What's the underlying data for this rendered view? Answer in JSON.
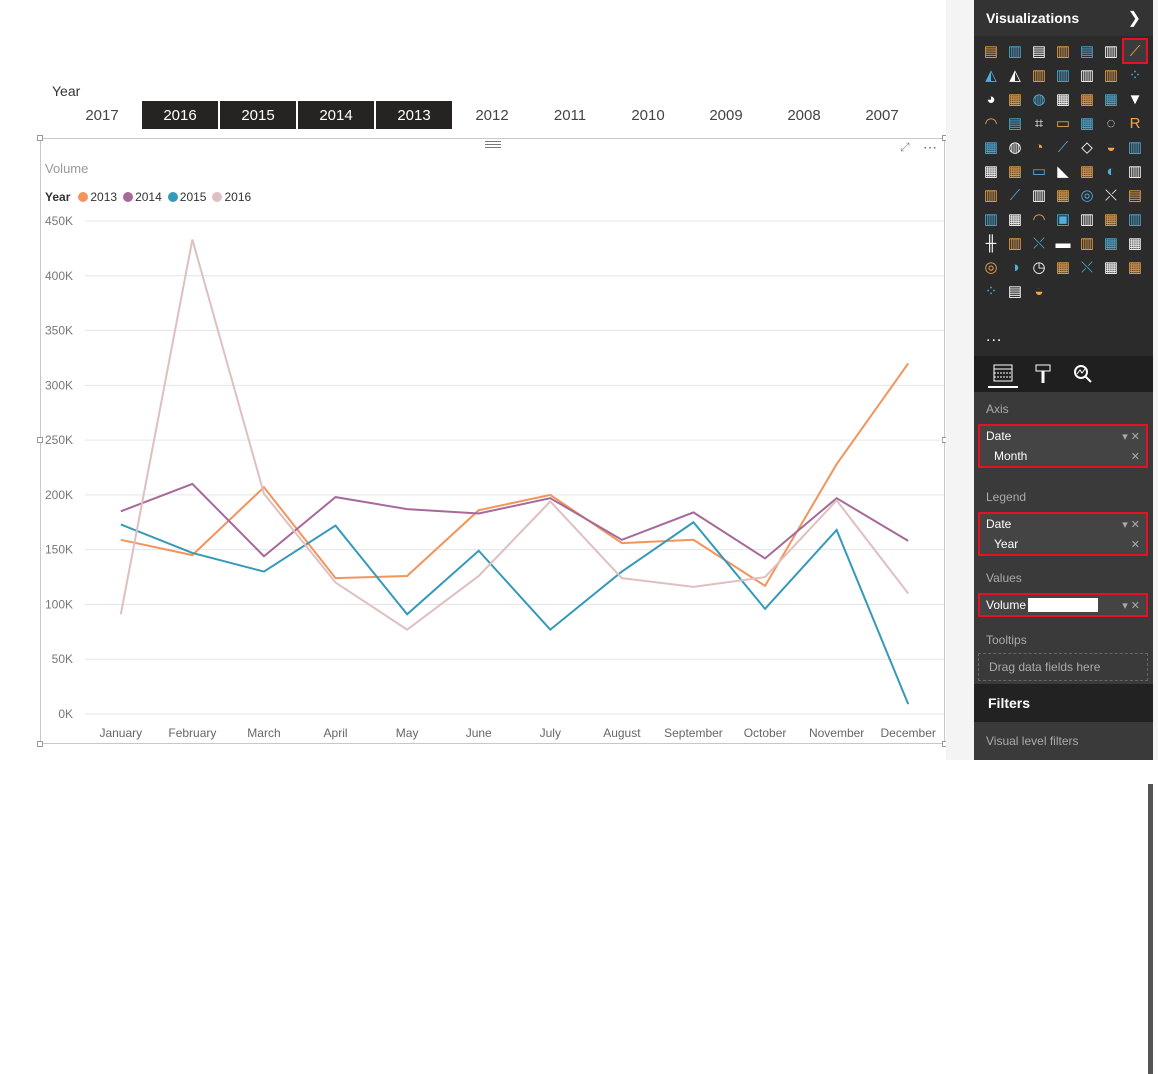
{
  "slicer": {
    "title": "Year",
    "tiles": [
      {
        "label": "2017",
        "selected": false
      },
      {
        "label": "2016",
        "selected": true
      },
      {
        "label": "2015",
        "selected": true
      },
      {
        "label": "2014",
        "selected": true
      },
      {
        "label": "2013",
        "selected": true
      },
      {
        "label": "2012",
        "selected": false
      },
      {
        "label": "2011",
        "selected": false
      },
      {
        "label": "2010",
        "selected": false
      },
      {
        "label": "2009",
        "selected": false
      },
      {
        "label": "2008",
        "selected": false
      },
      {
        "label": "2007",
        "selected": false
      }
    ]
  },
  "visual": {
    "title": "Volume",
    "legend_title": "Year"
  },
  "chart_data": {
    "type": "line",
    "categories": [
      "January",
      "February",
      "March",
      "April",
      "May",
      "June",
      "July",
      "August",
      "September",
      "October",
      "November",
      "December"
    ],
    "ylim": [
      0,
      450000
    ],
    "yticks": [
      0,
      50000,
      100000,
      150000,
      200000,
      250000,
      300000,
      350000,
      400000,
      450000
    ],
    "ytick_labels": [
      "0K",
      "50K",
      "100K",
      "150K",
      "200K",
      "250K",
      "300K",
      "350K",
      "400K",
      "450K"
    ],
    "grid": true,
    "legend_position": "top-left",
    "series": [
      {
        "name": "2013",
        "color": "#f2945c",
        "values": [
          159000,
          145000,
          207000,
          124000,
          126000,
          186000,
          200000,
          156000,
          159000,
          117000,
          228000,
          320000
        ]
      },
      {
        "name": "2014",
        "color": "#a66999",
        "values": [
          185000,
          210000,
          144000,
          198000,
          187000,
          183000,
          197000,
          159000,
          184000,
          142000,
          197000,
          158000
        ]
      },
      {
        "name": "2015",
        "color": "#3599b8",
        "values": [
          173000,
          147000,
          130000,
          172000,
          91000,
          149000,
          77000,
          130000,
          175000,
          96000,
          168000,
          9000
        ]
      },
      {
        "name": "2016",
        "color": "#dfbfbf",
        "values": [
          91000,
          433000,
          201000,
          120000,
          77000,
          126000,
          194000,
          124000,
          116000,
          125000,
          195000,
          110000
        ]
      }
    ]
  },
  "visualizations_pane": {
    "title": "Visualizations",
    "icons": [
      "stacked-bar-icon",
      "stacked-column-icon",
      "clustered-bar-icon",
      "clustered-column-icon",
      "100-stacked-bar-icon",
      "100-stacked-column-icon",
      "line-chart-icon",
      "area-chart-icon",
      "stacked-area-icon",
      "line-clustered-column-icon",
      "line-stacked-column-icon",
      "ribbon-chart-icon",
      "waterfall-icon",
      "scatter-icon",
      "pie-icon",
      "treemap-icon",
      "map-icon",
      "table-icon",
      "matrix-icon",
      "filled-map-icon",
      "funnel-icon",
      "gauge-icon",
      "multi-row-card-icon",
      "card-icon",
      "kpi-icon",
      "slicer-icon",
      "donut-icon",
      "r-visual-icon",
      "custom-map-icon",
      "globe-icon",
      "radial-icon",
      "sparkline-icon",
      "layers-icon",
      "circle-icon",
      "timeline-icon",
      "calendar-icon",
      "chiclet-icon",
      "bullet-icon",
      "pdf-icon",
      "123-icon",
      "pie-slice-icon",
      "tornado-icon",
      "gantt-icon",
      "line-forecast-icon",
      "histogram-icon",
      "bars-icon",
      "chord-icon",
      "network-icon",
      "text-icon",
      "column-gradient-icon",
      "heat-grid-icon",
      "wave-icon",
      "card-yellow-icon",
      "bar-column-icon",
      "sankey-icon",
      "box-icon",
      "box-whisker-icon",
      "dual-bars-icon",
      "graph-icon",
      "bullet-line-icon",
      "column-scroll-icon",
      "hierarchy-icon",
      "area-line-icon",
      "dot-donut-icon",
      "toggle-icon",
      "clock-icon",
      "tiles-icon",
      "network-x-icon",
      "table-multi-icon",
      "table-split-icon",
      "bubbles-icon",
      "table-list-icon",
      "user-icon"
    ],
    "active_icon_index": 6,
    "more_label": "...",
    "tabs": [
      "fields-tab-icon",
      "format-tab-icon",
      "analytics-tab-icon"
    ],
    "axis_label": "Axis",
    "axis_field": "Date",
    "axis_subfield": "Month",
    "legend_label": "Legend",
    "legend_field": "Date",
    "legend_subfield": "Year",
    "values_label": "Values",
    "values_field": "Volume",
    "tooltips_label": "Tooltips",
    "tooltips_placeholder": "Drag data fields here",
    "filters_title": "Filters",
    "filters_sub": "Visual level filters"
  }
}
